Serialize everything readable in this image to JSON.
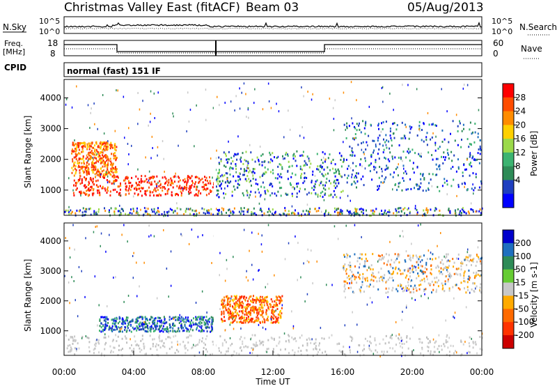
{
  "header": {
    "station": "Christmas Valley East (fitACF)",
    "beam": "Beam 03",
    "date": "05/Aug/2013"
  },
  "status_panels": {
    "nsky_label": "N.Sky",
    "nsearch_label": "N.Search",
    "freq_label_line1": "Freq.",
    "freq_label_line2": "[MHz]",
    "nave_label": "Nave",
    "cpid_label": "CPID",
    "cpid_value": "normal (fast) 151 IF",
    "noise_ticks_left": [
      "10^5",
      "10^0"
    ],
    "noise_ticks_right": [
      "10^5",
      "10^0"
    ],
    "freq_ticks": [
      "18",
      "8"
    ],
    "nave_ticks": [
      "60",
      "0"
    ]
  },
  "chart_data": [
    {
      "type": "heatmap",
      "title": "",
      "xlabel": "",
      "ylabel": "Slant Range [km]",
      "xlim": [
        "00:00",
        "24:00"
      ],
      "ylim": [
        180,
        4600
      ],
      "y_ticks": [
        1000,
        2000,
        3000,
        4000
      ],
      "colorbar": {
        "label": "Power [dB]",
        "ticks": [
          "28",
          "24",
          "20",
          "16",
          "12",
          "8",
          "4"
        ],
        "colors": [
          "#ff0000",
          "#ff4d00",
          "#ff8c00",
          "#ffd000",
          "#9bd94a",
          "#3cb371",
          "#2e8b57",
          "#1f3fbf",
          "#0000ff"
        ]
      },
      "scatter_regions": [
        {
          "name": "dense-band-1",
          "t0": 0.5,
          "t1": 8.6,
          "r0": 850,
          "r1": 1500,
          "value": "red"
        },
        {
          "name": "arc-1",
          "t0": 0.4,
          "t1": 3.0,
          "r0": 1500,
          "r1": 2600,
          "value": "orange"
        },
        {
          "name": "ground-scatter",
          "t0": 0.0,
          "t1": 24.0,
          "r0": 200,
          "r1": 450,
          "value": "mixed"
        },
        {
          "name": "mid-cluster",
          "t0": 8.6,
          "t1": 16.0,
          "r0": 800,
          "r1": 2300,
          "value": "green-blue"
        },
        {
          "name": "late-band",
          "t0": 16.0,
          "t1": 24.0,
          "r0": 1000,
          "r1": 3300,
          "value": "blue-green"
        }
      ]
    },
    {
      "type": "heatmap",
      "title": "",
      "xlabel": "Time UT",
      "ylabel": "Slant Range [km]",
      "xlim": [
        "00:00",
        "24:00"
      ],
      "ylim": [
        180,
        4600
      ],
      "x_ticks": [
        "00:00",
        "04:00",
        "08:00",
        "12:00",
        "16:00",
        "20:00",
        "00:00"
      ],
      "y_ticks": [
        1000,
        2000,
        3000,
        4000
      ],
      "colorbar": {
        "label": "Velocity [m s-1]",
        "ticks": [
          "200",
          "100",
          "50",
          "15",
          "-15",
          "-50",
          "-100",
          "-200"
        ],
        "colors": [
          "#0000cc",
          "#1f6fbf",
          "#2e8b57",
          "#66cc33",
          "#c8c8c8",
          "#ffaa00",
          "#ff6a00",
          "#ff3300",
          "#cc0000"
        ]
      },
      "scatter_regions": [
        {
          "name": "positive-band",
          "t0": 2.0,
          "t1": 8.6,
          "r0": 1000,
          "r1": 1500,
          "value": "blue-green"
        },
        {
          "name": "ground-gray",
          "t0": 0.0,
          "t1": 24.0,
          "r0": 200,
          "r1": 900,
          "value": "gray"
        },
        {
          "name": "negative-cluster",
          "t0": 9.0,
          "t1": 12.5,
          "r0": 1300,
          "r1": 2200,
          "value": "orange"
        },
        {
          "name": "late-arc",
          "t0": 16.0,
          "t1": 24.0,
          "r0": 2300,
          "r1": 3600,
          "value": "gray-orange"
        }
      ]
    }
  ]
}
